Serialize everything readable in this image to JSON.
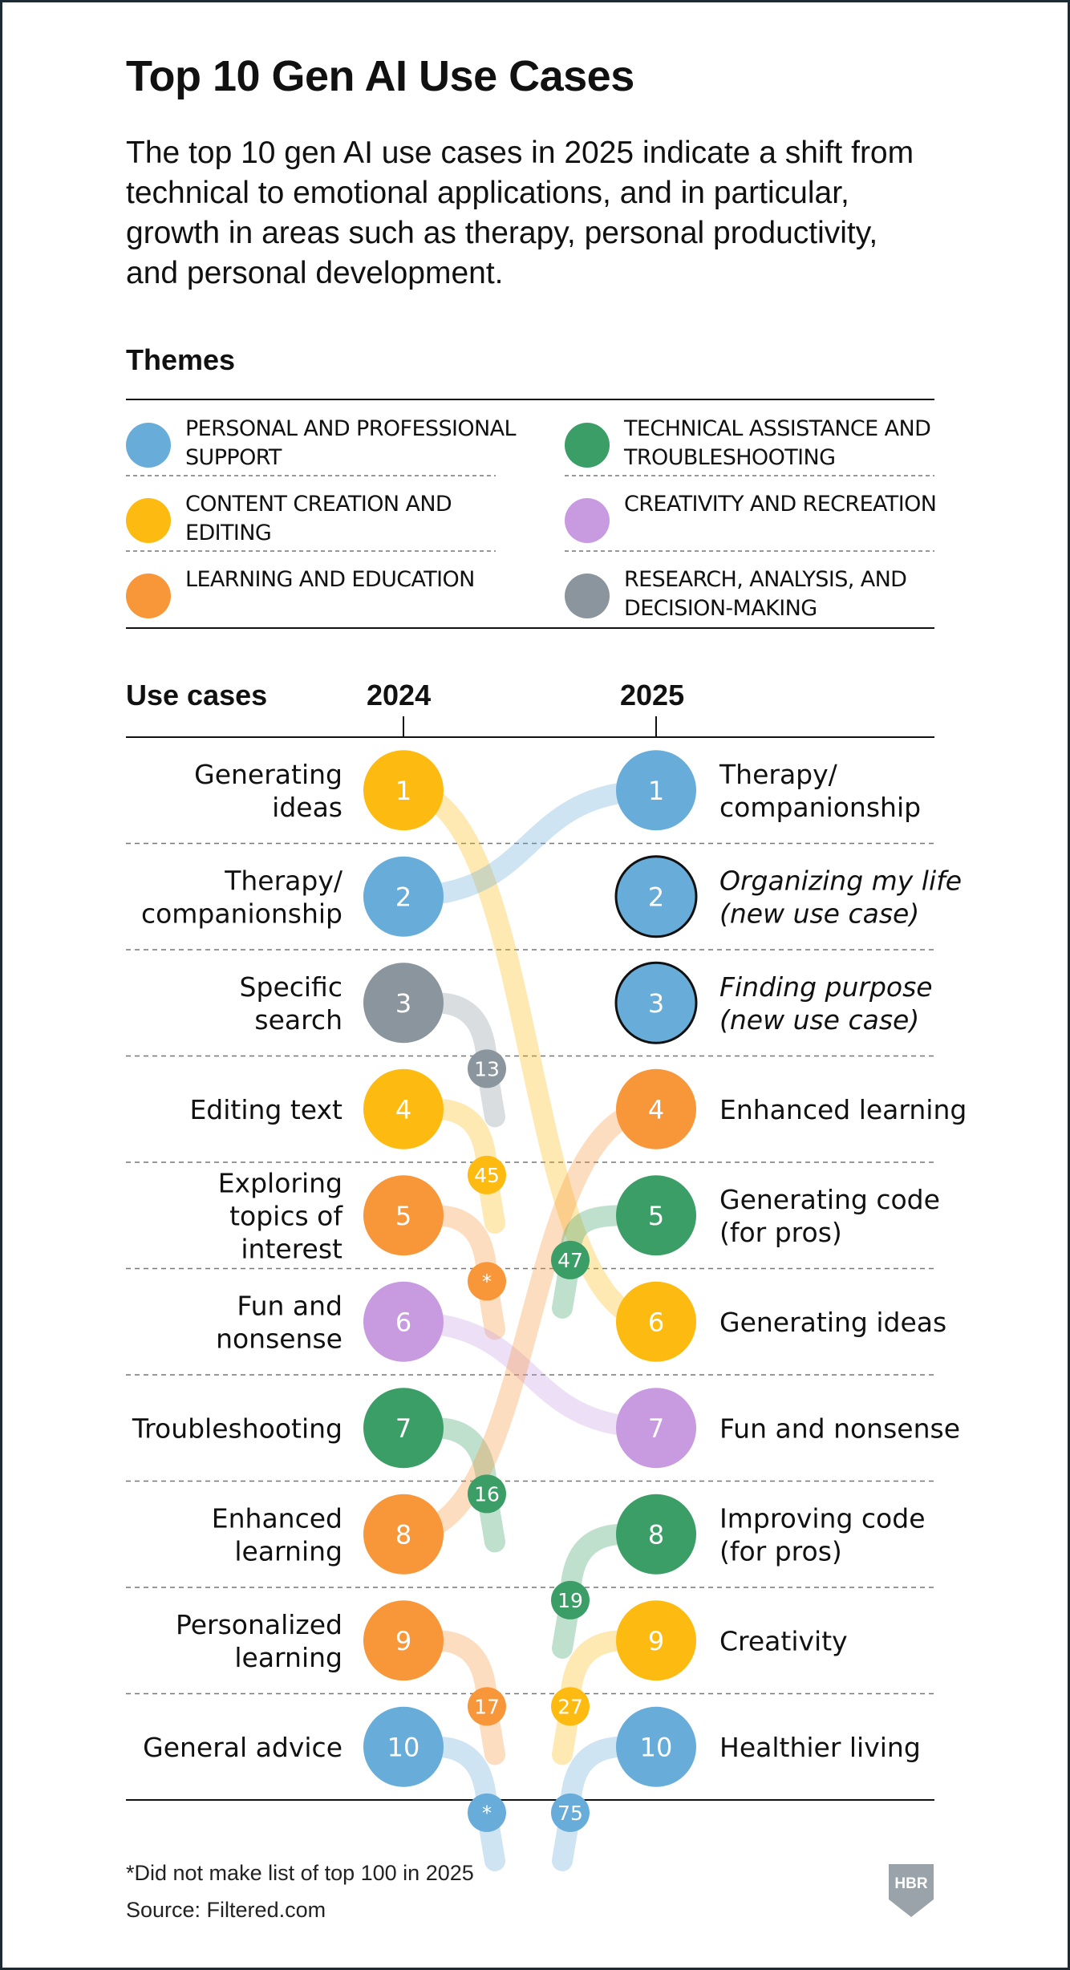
{
  "title": "Top 10 Gen AI Use Cases",
  "subtitle": "The top 10 gen AI use cases in 2025 indicate a shift from technical to emotional applications, and in particular, growth in areas such as therapy, personal productivity, and personal development.",
  "themes_heading": "Themes",
  "themes": [
    {
      "key": "personal",
      "label": "Personal and professional support",
      "color": "#68acd9"
    },
    {
      "key": "technical",
      "label": "Technical assistance and troubleshooting",
      "color": "#3a9e66"
    },
    {
      "key": "content",
      "label": "Content creation and editing",
      "color": "#fdbb12"
    },
    {
      "key": "creativity",
      "label": "Creativity and recreation",
      "color": "#c89ae0"
    },
    {
      "key": "learning",
      "label": "Learning and education",
      "color": "#f8963a"
    },
    {
      "key": "research",
      "label": "Research, analysis, and decision-making",
      "color": "#8a959e"
    }
  ],
  "chart_data": {
    "type": "slope",
    "row_header": "Use cases",
    "x": [
      "2024",
      "2025"
    ],
    "rank_2024": [
      {
        "rank": 1,
        "label": "Generating ideas",
        "theme": "content",
        "rank_2025": "6"
      },
      {
        "rank": 2,
        "label": "Therapy/ companionship",
        "theme": "personal",
        "rank_2025": "1"
      },
      {
        "rank": 3,
        "label": "Specific search",
        "theme": "research",
        "rank_2025": "13"
      },
      {
        "rank": 4,
        "label": "Editing text",
        "theme": "content",
        "rank_2025": "45"
      },
      {
        "rank": 5,
        "label": "Exploring topics of interest",
        "theme": "learning",
        "rank_2025": "*"
      },
      {
        "rank": 6,
        "label": "Fun and nonsense",
        "theme": "creativity",
        "rank_2025": "7"
      },
      {
        "rank": 7,
        "label": "Troubleshooting",
        "theme": "technical",
        "rank_2025": "16"
      },
      {
        "rank": 8,
        "label": "Enhanced learning",
        "theme": "learning",
        "rank_2025": "4"
      },
      {
        "rank": 9,
        "label": "Personalized learning",
        "theme": "learning",
        "rank_2025": "17"
      },
      {
        "rank": 10,
        "label": "General advice",
        "theme": "personal",
        "rank_2025": "*"
      }
    ],
    "rank_2025": [
      {
        "rank": 1,
        "label": "Therapy/ companionship",
        "theme": "personal",
        "rank_2024": "2",
        "new": false
      },
      {
        "rank": 2,
        "label": "Organizing my life (new use case)",
        "theme": "personal",
        "rank_2024": "",
        "new": true
      },
      {
        "rank": 3,
        "label": "Finding purpose (new use case)",
        "theme": "personal",
        "rank_2024": "",
        "new": true
      },
      {
        "rank": 4,
        "label": "Enhanced learning",
        "theme": "learning",
        "rank_2024": "8",
        "new": false
      },
      {
        "rank": 5,
        "label": "Generating code (for pros)",
        "theme": "technical",
        "rank_2024": "47",
        "new": false
      },
      {
        "rank": 6,
        "label": "Generating ideas",
        "theme": "content",
        "rank_2024": "1",
        "new": false
      },
      {
        "rank": 7,
        "label": "Fun and nonsense",
        "theme": "creativity",
        "rank_2024": "6",
        "new": false
      },
      {
        "rank": 8,
        "label": "Improving code (for pros)",
        "theme": "technical",
        "rank_2024": "19",
        "new": false
      },
      {
        "rank": 9,
        "label": "Creativity",
        "theme": "content",
        "rank_2024": "27",
        "new": false
      },
      {
        "rank": 10,
        "label": "Healthier living",
        "theme": "personal",
        "rank_2024": "75",
        "new": false
      }
    ]
  },
  "footnote": "*Did not make list of top 100 in 2025",
  "source": "Source: Filtered.com",
  "logo_text": "HBR"
}
